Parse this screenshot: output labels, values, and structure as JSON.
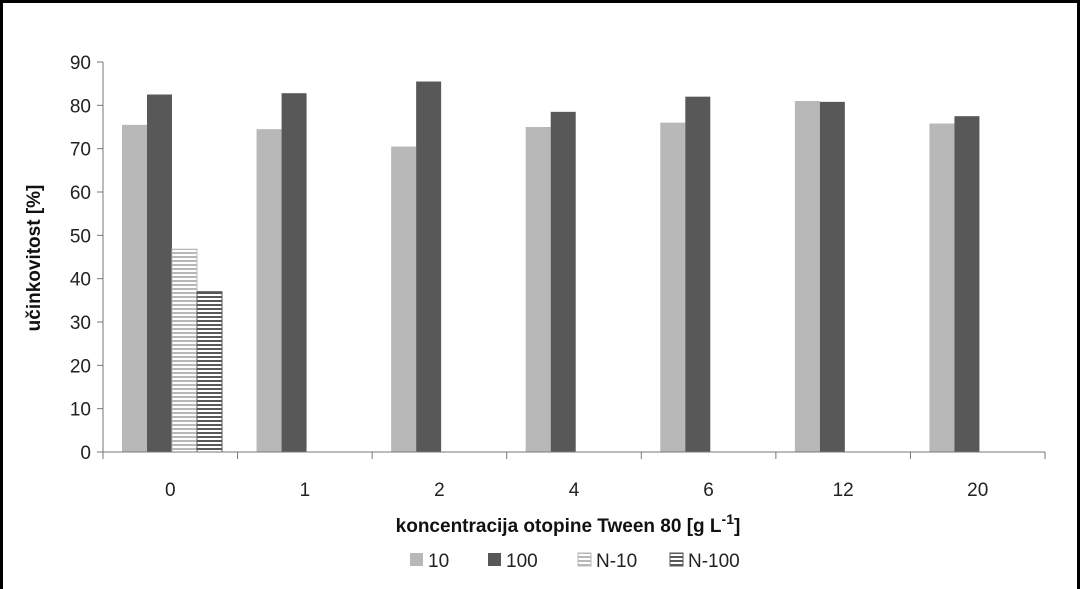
{
  "chart_data": {
    "type": "bar",
    "xlabel": "koncentracija otopine Tween 80 [g L",
    "xlabel_superscript": "-1",
    "xlabel_suffix": "]",
    "ylabel": "učinkovitost  [%]",
    "ylim": [
      0,
      90
    ],
    "yticks": [
      0,
      10,
      20,
      30,
      40,
      50,
      60,
      70,
      80,
      90
    ],
    "categories": [
      "0",
      "1",
      "2",
      "4",
      "6",
      "12",
      "20"
    ],
    "series": [
      {
        "name": "10",
        "color": "#b8b8b8",
        "pattern": "solid",
        "values": [
          75.5,
          74.5,
          70.5,
          75,
          76,
          81,
          75.8
        ]
      },
      {
        "name": "100",
        "color": "#585858",
        "pattern": "solid",
        "values": [
          82.5,
          82.8,
          85.5,
          78.5,
          82,
          80.8,
          77.5
        ]
      },
      {
        "name": "N-10",
        "color": "#b8b8b8",
        "pattern": "horizontal-stripes",
        "values": [
          46.8,
          null,
          null,
          null,
          null,
          null,
          null
        ]
      },
      {
        "name": "N-100",
        "color": "#585858",
        "pattern": "horizontal-stripes",
        "values": [
          37,
          null,
          null,
          null,
          null,
          null,
          null
        ]
      }
    ],
    "legend_position": "bottom-center",
    "grid": false
  }
}
